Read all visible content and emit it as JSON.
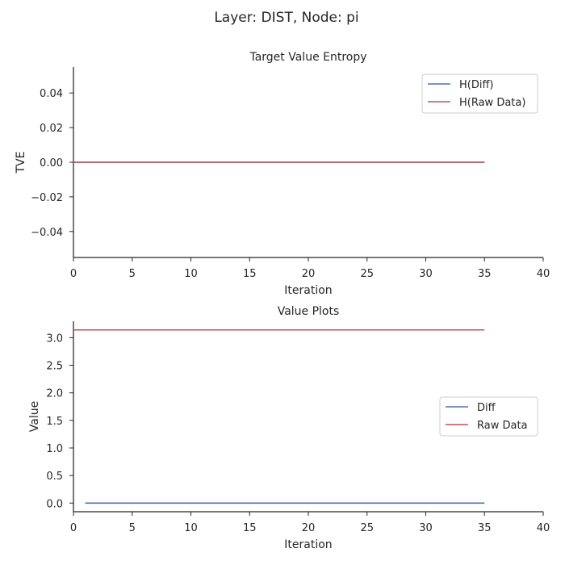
{
  "figure": {
    "suptitle": "Layer: DIST, Node: pi"
  },
  "chart_data": [
    {
      "type": "line",
      "title": "Target Value Entropy",
      "xlabel": "Iteration",
      "ylabel": "TVE",
      "xlim": [
        0,
        40
      ],
      "ylim": [
        -0.055,
        0.055
      ],
      "xticks": [
        0,
        5,
        10,
        15,
        20,
        25,
        30,
        35,
        40
      ],
      "xtick_labels": [
        "0",
        "5",
        "10",
        "15",
        "20",
        "25",
        "30",
        "35",
        "40"
      ],
      "yticks": [
        -0.04,
        -0.02,
        0.0,
        0.02,
        0.04
      ],
      "ytick_labels": [
        "−0.04",
        "−0.02",
        "0.00",
        "0.02",
        "0.04"
      ],
      "grid": false,
      "legend_position": "top-right",
      "series": [
        {
          "name": "H(Diff)",
          "color": "#4c72b0",
          "x": [
            0,
            35
          ],
          "y": [
            0.0,
            0.0
          ]
        },
        {
          "name": "H(Raw Data)",
          "color": "#c44e52",
          "x": [
            0,
            35
          ],
          "y": [
            0.0,
            0.0
          ]
        }
      ]
    },
    {
      "type": "line",
      "title": "Value Plots",
      "xlabel": "Iteration",
      "ylabel": "Value",
      "xlim": [
        0,
        40
      ],
      "ylim": [
        -0.157,
        3.299
      ],
      "xticks": [
        0,
        5,
        10,
        15,
        20,
        25,
        30,
        35,
        40
      ],
      "xtick_labels": [
        "0",
        "5",
        "10",
        "15",
        "20",
        "25",
        "30",
        "35",
        "40"
      ],
      "yticks": [
        0.0,
        0.5,
        1.0,
        1.5,
        2.0,
        2.5,
        3.0
      ],
      "ytick_labels": [
        "0.0",
        "0.5",
        "1.0",
        "1.5",
        "2.0",
        "2.5",
        "3.0"
      ],
      "grid": false,
      "legend_position": "center-right",
      "series": [
        {
          "name": "Diff",
          "color": "#4c72b0",
          "x": [
            1,
            35
          ],
          "y": [
            0.0,
            0.0
          ]
        },
        {
          "name": "Raw Data",
          "color": "#c44e52",
          "x": [
            0,
            35
          ],
          "y": [
            3.14159,
            3.14159
          ]
        }
      ]
    }
  ]
}
